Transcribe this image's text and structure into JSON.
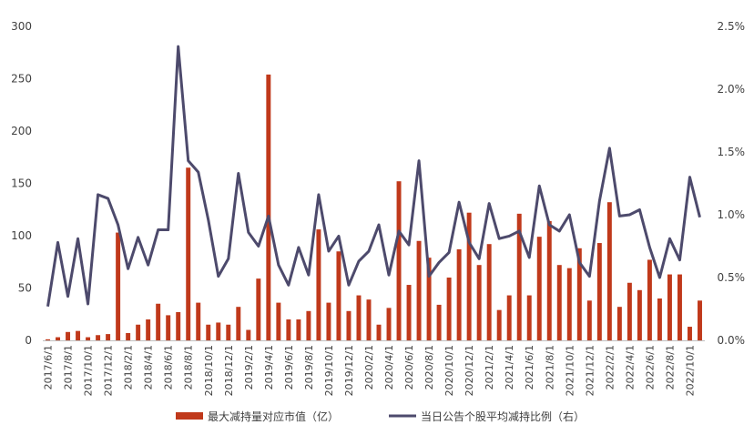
{
  "chart_data": {
    "type": "bar+line",
    "title": "",
    "categories": [
      "2017/6/1",
      "2017/7/1",
      "2017/8/1",
      "2017/9/1",
      "2017/10/1",
      "2017/11/1",
      "2017/12/1",
      "2018/1/1",
      "2018/2/1",
      "2018/3/1",
      "2018/4/1",
      "2018/5/1",
      "2018/6/1",
      "2018/7/1",
      "2018/8/1",
      "2018/9/1",
      "2018/10/1",
      "2018/11/1",
      "2018/12/1",
      "2019/1/1",
      "2019/2/1",
      "2019/3/1",
      "2019/4/1",
      "2019/5/1",
      "2019/6/1",
      "2019/7/1",
      "2019/8/1",
      "2019/9/1",
      "2019/10/1",
      "2019/11/1",
      "2019/12/1",
      "2020/1/1",
      "2020/2/1",
      "2020/3/1",
      "2020/4/1",
      "2020/5/1",
      "2020/6/1",
      "2020/7/1",
      "2020/8/1",
      "2020/9/1",
      "2020/10/1",
      "2020/11/1",
      "2020/12/1",
      "2021/1/1",
      "2021/2/1",
      "2021/3/1",
      "2021/4/1",
      "2021/5/1",
      "2021/6/1",
      "2021/7/1",
      "2021/8/1",
      "2021/9/1",
      "2021/10/1",
      "2021/11/1",
      "2021/12/1",
      "2022/1/1",
      "2022/2/1",
      "2022/3/1",
      "2022/4/1",
      "2022/5/1",
      "2022/6/1",
      "2022/7/1",
      "2022/8/1",
      "2022/9/1",
      "2022/10/1",
      "2022/11/1"
    ],
    "x_tick_labels": [
      "2017/6/1",
      "2017/8/1",
      "2017/10/1",
      "2017/12/1",
      "2018/2/1",
      "2018/4/1",
      "2018/6/1",
      "2018/8/1",
      "2018/10/1",
      "2018/12/1",
      "2019/2/1",
      "2019/4/1",
      "2019/6/1",
      "2019/8/1",
      "2019/10/1",
      "2019/12/1",
      "2020/2/1",
      "2020/4/1",
      "2020/6/1",
      "2020/8/1",
      "2020/10/1",
      "2020/12/1",
      "2021/2/1",
      "2021/4/1",
      "2021/6/1",
      "2021/8/1",
      "2021/10/1",
      "2021/12/1",
      "2022/2/1",
      "2022/4/1",
      "2022/6/1",
      "2022/8/1",
      "2022/10/1"
    ],
    "series": [
      {
        "name": "最大减持量对应市值（亿）",
        "type": "bar",
        "axis": "left",
        "color": "#C0391B",
        "values": [
          1,
          3,
          8,
          9,
          3,
          5,
          6,
          103,
          7,
          15,
          20,
          35,
          24,
          27,
          165,
          36,
          15,
          17,
          15,
          32,
          10,
          59,
          254,
          36,
          20,
          20,
          28,
          106,
          36,
          85,
          28,
          43,
          39,
          15,
          31,
          152,
          53,
          95,
          79,
          34,
          60,
          87,
          122,
          72,
          92,
          29,
          43,
          121,
          43,
          99,
          114,
          72,
          69,
          88,
          38,
          93,
          132,
          32,
          55,
          48,
          77,
          40,
          63,
          63,
          13,
          38
        ]
      },
      {
        "name": "当日公告个股平均减持比例（右）",
        "type": "line",
        "axis": "right",
        "color": "#4D4A6C",
        "values": [
          0.27,
          0.78,
          0.35,
          0.81,
          0.29,
          1.16,
          1.13,
          0.92,
          0.57,
          0.82,
          0.6,
          0.88,
          0.88,
          2.34,
          1.43,
          1.34,
          0.96,
          0.51,
          0.65,
          1.33,
          0.86,
          0.75,
          0.99,
          0.6,
          0.44,
          0.74,
          0.52,
          1.16,
          0.71,
          0.83,
          0.44,
          0.63,
          0.71,
          0.92,
          0.52,
          0.87,
          0.76,
          1.43,
          0.51,
          0.62,
          0.7,
          1.1,
          0.78,
          0.65,
          1.09,
          0.81,
          0.83,
          0.87,
          0.66,
          1.23,
          0.92,
          0.87,
          1.0,
          0.62,
          0.51,
          1.11,
          1.53,
          0.99,
          1.0,
          1.04,
          0.74,
          0.5,
          0.81,
          0.64,
          1.3,
          0.98
        ]
      }
    ],
    "y_left": {
      "min": 0,
      "max": 300,
      "ticks": [
        0,
        50,
        100,
        150,
        200,
        250,
        300
      ],
      "labels": [
        "0",
        "50",
        "100",
        "150",
        "200",
        "250",
        "300"
      ]
    },
    "y_right": {
      "min": 0,
      "max": 2.5,
      "ticks": [
        0,
        0.5,
        1.0,
        1.5,
        2.0,
        2.5
      ],
      "labels": [
        "0.0%",
        "0.5%",
        "1.0%",
        "1.5%",
        "2.0%",
        "2.5%"
      ]
    },
    "grid": false,
    "legend_position": "bottom"
  }
}
